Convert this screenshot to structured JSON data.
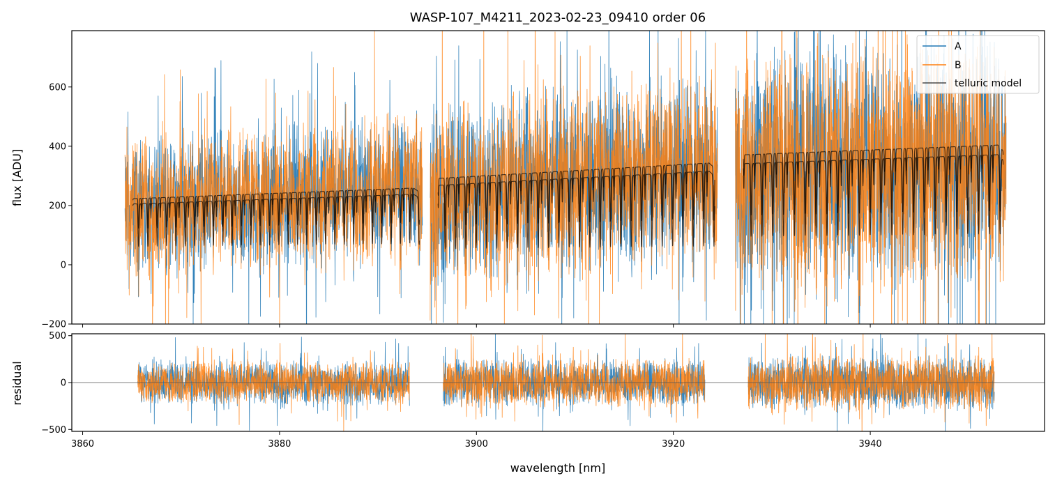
{
  "chart_data": [
    {
      "type": "line",
      "panel": "main",
      "title": "WASP-107_M4211_2023-02-23_09410  order 06",
      "xlabel": "",
      "ylabel": "flux [ADU]",
      "xlim": [
        3858.9,
        3957.7
      ],
      "ylim": [
        -200,
        790
      ],
      "yticks": [
        -200,
        0,
        200,
        400,
        600
      ],
      "grid": false,
      "legend": {
        "placement": "top-right",
        "entries": [
          "A",
          "B",
          "telluric model"
        ]
      },
      "colors": {
        "A": "#1f77b4",
        "B": "#ff7f0e",
        "telluric model": "#000000"
      },
      "segments": [
        {
          "x_range": [
            3864.3,
            3894.5
          ],
          "data_baseline": [
            210,
            265
          ],
          "data_noise_amplitude": 160,
          "model_continuum": [
            222,
            260
          ],
          "model_line_depth": [
            0.45,
            0.7
          ],
          "model_line_spacing_nm": 0.95
        },
        {
          "x_range": [
            3895.3,
            3924.5
          ],
          "data_baseline": [
            270,
            330
          ],
          "data_noise_amplitude": 210,
          "model_continuum": [
            290,
            345
          ],
          "model_line_depth": [
            0.55,
            0.8
          ],
          "model_line_spacing_nm": 1.05
        },
        {
          "x_range": [
            3926.3,
            3953.8
          ],
          "data_baseline": [
            330,
            370
          ],
          "data_noise_amplitude": 280,
          "model_continuum": [
            370,
            405
          ],
          "model_line_depth": [
            0.55,
            0.72
          ],
          "model_line_spacing_nm": 1.1
        }
      ],
      "series": [
        {
          "name": "A"
        },
        {
          "name": "B"
        },
        {
          "name": "telluric model"
        }
      ]
    },
    {
      "type": "line",
      "panel": "residual",
      "title": "",
      "xlabel": "wavelength [nm]",
      "ylabel": "residual",
      "xlim": [
        3858.9,
        3957.7
      ],
      "ylim": [
        -520,
        520
      ],
      "xticks": [
        3860,
        3880,
        3900,
        3920,
        3940
      ],
      "yticks": [
        -500,
        0,
        500
      ],
      "grid": false,
      "zero_line": true,
      "segments": [
        {
          "x_range": [
            3865.6,
            3893.2
          ],
          "noise_amplitude": 260
        },
        {
          "x_range": [
            3896.6,
            3923.2
          ],
          "noise_amplitude": 280
        },
        {
          "x_range": [
            3927.6,
            3952.6
          ],
          "noise_amplitude": 320
        }
      ],
      "series": [
        {
          "name": "A"
        },
        {
          "name": "B"
        }
      ]
    }
  ]
}
